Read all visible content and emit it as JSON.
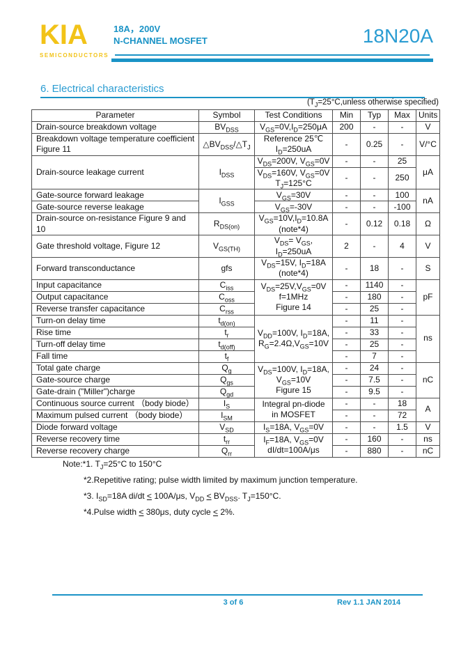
{
  "colors": {
    "accent_blue": "#1A93C6",
    "brand_yellow": "#F2C318"
  },
  "header": {
    "logo_text": "KIA",
    "logo_subtext": "SEMICONDUCTORS",
    "product_rating": "18A，200V",
    "product_type": "N-CHANNEL MOSFET",
    "part_number": "18N20A"
  },
  "section": {
    "title": "6.  Electrical characteristics",
    "condition_note_html": "(T<sub>J</sub>=25°C,unless otherwise specified)"
  },
  "table": {
    "headers": [
      "Parameter",
      "Symbol",
      "Test Conditions",
      "Min",
      "Typ",
      "Max",
      "Units"
    ],
    "rows": {
      "r1": {
        "param": "Drain-source breakdown voltage",
        "sym": "BV<sub>DSS</sub>",
        "cond": "V<sub>GS</sub>=0V,I<sub>D</sub>=250μA",
        "min": "200",
        "typ": "-",
        "max": "-",
        "units": "V"
      },
      "r2": {
        "param": "Breakdown voltage temperature coefficient Figure 11",
        "sym": "△BV<sub>DSS</sub>/△T<sub>J</sub>",
        "cond": "Reference 25℃<br>I<sub>D</sub>=250uA",
        "min": "-",
        "typ": "0.25",
        "max": "-",
        "units": "V/°C"
      },
      "r3": {
        "param": "Drain-source leakage current",
        "sym": "I<sub>DSS</sub>",
        "cond": "V<sub>DS</sub>=200V, V<sub>GS</sub>=0V",
        "min": "-",
        "typ": "-",
        "max": "25",
        "units": "μA"
      },
      "r4": {
        "cond": "V<sub>DS</sub>=160V, V<sub>GS</sub>=0V<br>T<sub>J</sub>=125°C",
        "min": "-",
        "typ": "-",
        "max": "250"
      },
      "r5": {
        "param": "Gate-source forward leakage",
        "sym": "I<sub>GSS</sub>",
        "cond": "V<sub>GS</sub>=30V",
        "min": "-",
        "typ": "-",
        "max": "100",
        "units": "nA"
      },
      "r6": {
        "param": "Gate-source reverse leakage",
        "cond": "V<sub>GS</sub>=-30V",
        "min": "-",
        "typ": "-",
        "max": "-100"
      },
      "r7": {
        "param": "Drain-source on-resistance Figure 9 and 10",
        "sym": "R<sub>DS(on)</sub>",
        "cond": "V<sub>GS</sub>=10V,I<sub>D</sub>=10.8A<br>(note*4)",
        "min": "-",
        "typ": "0.12",
        "max": "0.18",
        "units": "Ω"
      },
      "r8": {
        "param": "Gate threshold voltage, Figure 12",
        "sym": "V<sub>GS(TH)</sub>",
        "cond": "V<sub>DS</sub>= V<sub>GS</sub>,<br>I<sub>D</sub>=250uA",
        "min": "2",
        "typ": "-",
        "max": "4",
        "units": "V"
      },
      "r9": {
        "param": "Forward transconductance",
        "sym": "gfs",
        "cond": "V<sub>DS</sub>=15V, I<sub>D</sub>=18A<br>(note*4)",
        "min": "-",
        "typ": "18",
        "max": "-",
        "units": "S"
      },
      "r10": {
        "param": "Input capacitance",
        "sym": "C<sub>iss</sub>",
        "cond": "V<sub>DS</sub>=25V,V<sub>GS</sub>=0V<br>f=1MHz<br>Figure 14",
        "min": "-",
        "typ": "1140",
        "max": "-",
        "units": "pF"
      },
      "r11": {
        "param": "Output capacitance",
        "sym": "C<sub>oss</sub>",
        "min": "-",
        "typ": "180",
        "max": "-"
      },
      "r12": {
        "param": "Reverse transfer capacitance",
        "sym": "C<sub>rss</sub>",
        "min": "-",
        "typ": "25",
        "max": "-"
      },
      "r13": {
        "param": "Turn-on delay time",
        "sym": "t<sub>d(on)</sub>",
        "cond": "V<sub>DD</sub>=100V, I<sub>D</sub>=18A,<br>R<sub>G</sub>=2.4Ω,V<sub>GS</sub>=10V",
        "min": "-",
        "typ": "11",
        "max": "-",
        "units": "ns"
      },
      "r14": {
        "param": "Rise time",
        "sym": "t<sub>r</sub>",
        "min": "-",
        "typ": "33",
        "max": "-"
      },
      "r15": {
        "param": "Turn-off delay time",
        "sym": "t<sub>d(off)</sub>",
        "min": "-",
        "typ": "25",
        "max": "-"
      },
      "r16": {
        "param": "Fall time",
        "sym": "t<sub>f</sub>",
        "min": "-",
        "typ": "7",
        "max": "-"
      },
      "r17": {
        "param": "Total gate charge",
        "sym": "Q<sub>g</sub>",
        "cond": "V<sub>DS</sub>=100V, I<sub>D</sub>=18A,<br>V<sub>GS</sub>=10V<br>Figure 15",
        "min": "-",
        "typ": "24",
        "max": "-",
        "units": "nC"
      },
      "r18": {
        "param": "Gate-source charge",
        "sym": "Q<sub>gs</sub>",
        "min": "-",
        "typ": "7.5",
        "max": "-"
      },
      "r19": {
        "param": "Gate-drain (\"Miller\")charge",
        "sym": "Q<sub>gd</sub>",
        "min": "-",
        "typ": "9.5",
        "max": "-"
      },
      "r20": {
        "param": "Continuous source current （body biode）",
        "sym": "I<sub>S</sub>",
        "cond": "Integral pn-diode<br>in MOSFET",
        "min": "-",
        "typ": "-",
        "max": "18",
        "units": "A"
      },
      "r21": {
        "param": "Maximum pulsed current （body biode）",
        "sym": "I<sub>SM</sub>",
        "min": "-",
        "typ": "-",
        "max": "72"
      },
      "r22": {
        "param": "Diode forward voltage",
        "sym": "V<sub>SD</sub>",
        "cond": "I<sub>S</sub>=18A, V<sub>GS</sub>=0V",
        "min": "-",
        "typ": "-",
        "max": "1.5",
        "units": "V"
      },
      "r23": {
        "param": "Reverse recovery time",
        "sym": "t<sub>rr</sub>",
        "cond": "I<sub>F</sub>=18A, V<sub>GS</sub>=0V<br>dI/dt=100A/μs",
        "min": "-",
        "typ": "160",
        "max": "-",
        "units": "ns"
      },
      "r24": {
        "param": "Reverse recovery charge",
        "sym": "Q<sub>rr</sub>",
        "min": "-",
        "typ": "880",
        "max": "-",
        "units": "nC"
      }
    }
  },
  "notes": {
    "n1": "Note:*1. T<sub>J</sub>=25°C to 150°C",
    "n2": "*2.Repetitive rating; pulse width limited by maximum junction temperature.",
    "n3": "*3. I<sub>SD</sub>=18A di/dt <u>&lt;</u> 100A/μs, V<sub>DD</sub> <u>&lt;</u> BV<sub>DSS</sub>. T<sub>J</sub>=150°C.",
    "n4": "*4.Pulse width <u>&lt;</u> 380μs, duty cycle <u>&lt;</u> 2%."
  },
  "footer": {
    "page": "3 of 6",
    "rev": "Rev 1.1 JAN 2014"
  }
}
